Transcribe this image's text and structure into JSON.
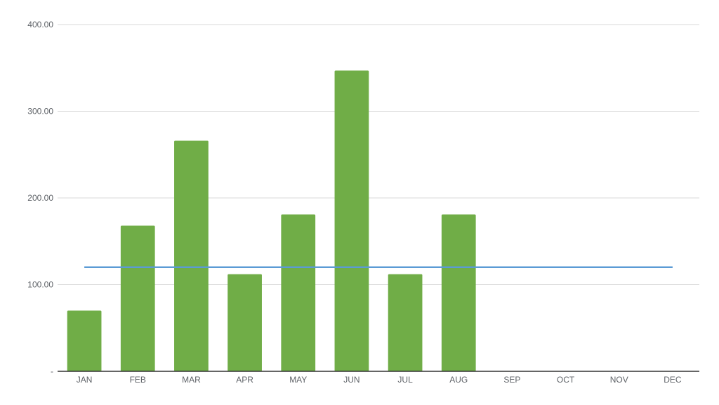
{
  "chart_data": {
    "type": "bar",
    "categories": [
      "JAN",
      "FEB",
      "MAR",
      "APR",
      "MAY",
      "JUN",
      "JUL",
      "AUG",
      "SEP",
      "OCT",
      "NOV",
      "DEC"
    ],
    "series": [
      {
        "type": "bar",
        "values": [
          70,
          168,
          266,
          112,
          181,
          347,
          112,
          181,
          null,
          null,
          null,
          null
        ]
      },
      {
        "type": "line",
        "values": [
          120,
          120,
          120,
          120,
          120,
          120,
          120,
          120,
          120,
          120,
          120,
          120
        ]
      }
    ],
    "y_ticks": [
      {
        "value": 0,
        "label": "-"
      },
      {
        "value": 100,
        "label": "100.00"
      },
      {
        "value": 200,
        "label": "200.00"
      },
      {
        "value": 300,
        "label": "300.00"
      },
      {
        "value": 400,
        "label": "400.00"
      }
    ],
    "ylim": [
      0,
      400
    ],
    "grid": true,
    "legend": "none",
    "colors": {
      "bar": "#70ad47",
      "line": "#5b9bd5"
    }
  }
}
